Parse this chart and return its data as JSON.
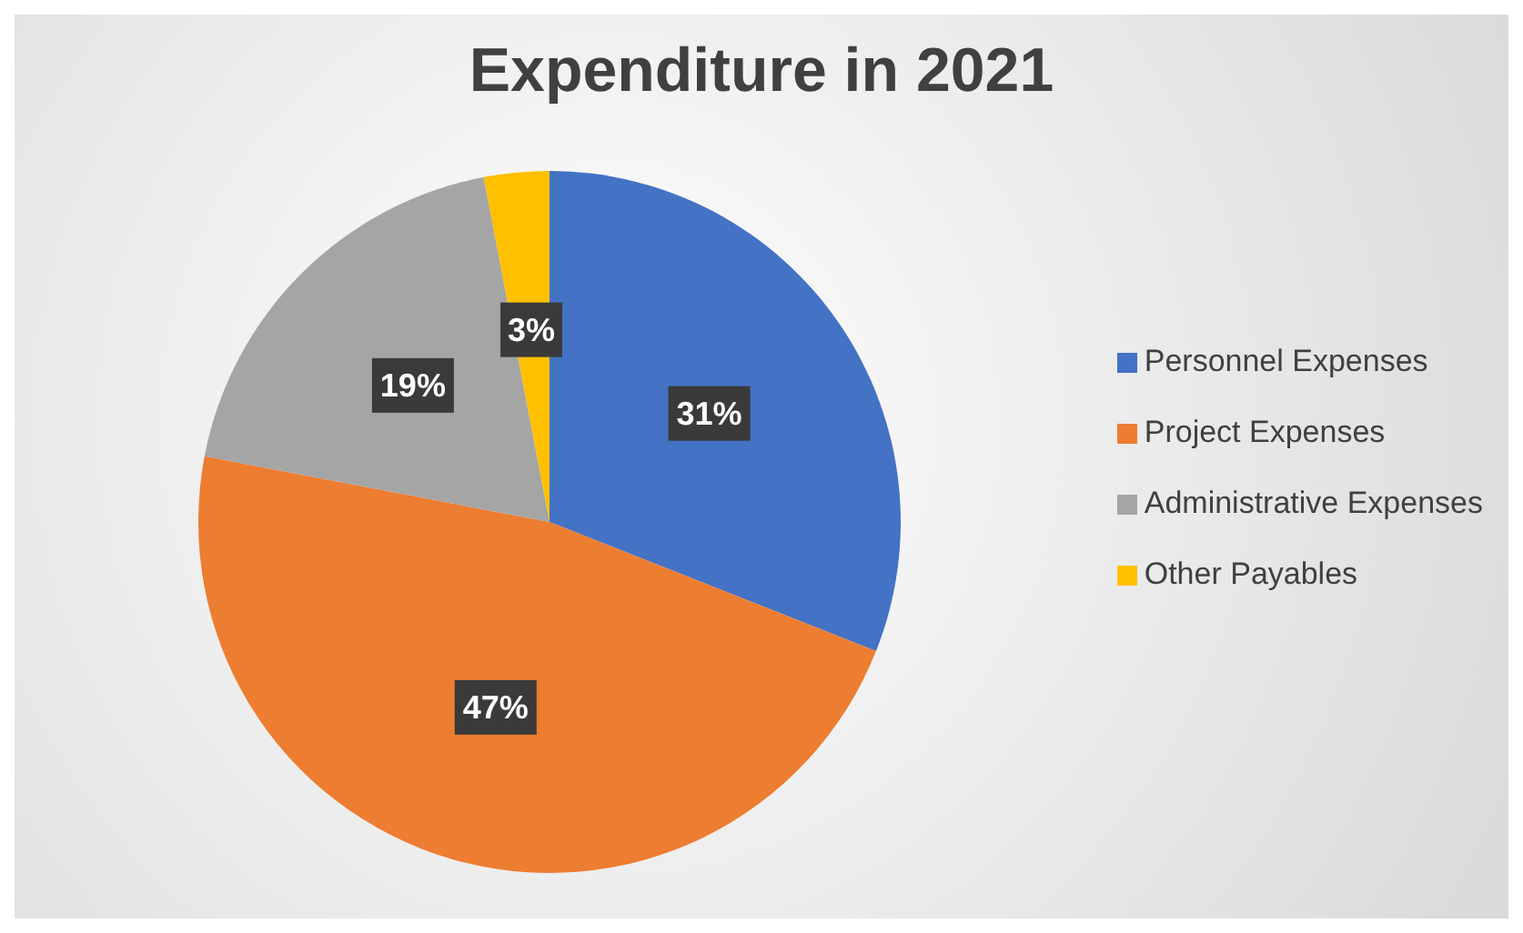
{
  "chart_data": {
    "type": "pie",
    "title": "Expenditure in 2021",
    "categories": [
      "Personnel Expenses",
      "Project Expenses",
      "Administrative Expenses",
      "Other Payables"
    ],
    "values": [
      31,
      47,
      19,
      3
    ],
    "colors": [
      "#4472c4",
      "#ed7d31",
      "#a5a5a5",
      "#ffc000"
    ],
    "value_labels": [
      "31%",
      "47%",
      "19%",
      "3%"
    ],
    "legend": "right"
  }
}
